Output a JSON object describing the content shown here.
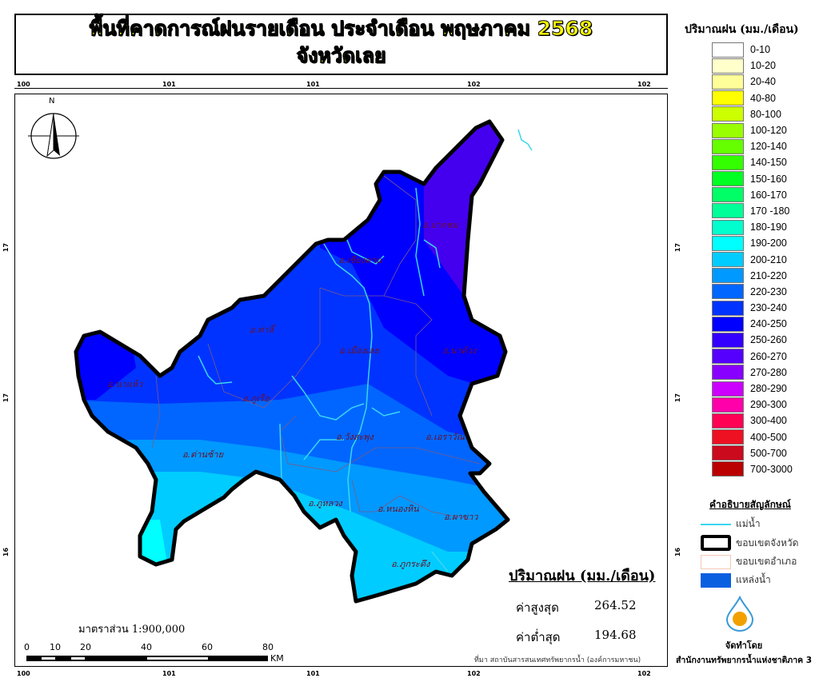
{
  "title": {
    "line1": "พื้นที่คาดการณ์ฝนรายเดือน ประจำเดือน พฤษภาคม 2568",
    "line2": "จังหวัดเลย"
  },
  "grid": {
    "top_labels": [
      "100",
      "101",
      "101",
      "102",
      "102"
    ],
    "bottom_labels": [
      "100",
      "101",
      "101",
      "102",
      "102"
    ],
    "left_labels": [
      "17",
      "17",
      "16"
    ],
    "right_labels": [
      "17",
      "17",
      "16"
    ]
  },
  "north_label": "N",
  "districts": [
    "อ.ปากชม",
    "อ.เชียงคาน",
    "อ.ท่าลี่",
    "อ.เมืองเลย",
    "อ.นาด้วง",
    "อ.นาแห้ว",
    "อ.ภูเรือ",
    "อ.วังสะพุง",
    "อ.เอราวัณ",
    "อ.ด่านซ้าย",
    "อ.ภูหลวง",
    "อ.หนองหิน",
    "อ.ผาขาว",
    "อ.ภูกระดึง"
  ],
  "scale": {
    "text": "มาตราส่วน 1:900,000",
    "ticks": [
      "0",
      "10",
      "20",
      "40",
      "60",
      "80"
    ],
    "unit": "KM"
  },
  "source": "ที่มา  สถาบันสารสนเทศทรัพยากรน้ำ (องค์การมหาชน)",
  "stats": {
    "title": "ปริมาณฝน (มม./เดือน)",
    "max_label": "ค่าสูงสุด",
    "max_value": "264.52",
    "min_label": "ค่าต่ำสุด",
    "min_value": "194.68"
  },
  "legend": {
    "title": "ปริมาณฝน (มม./เดือน)",
    "items": [
      {
        "label": "0-10",
        "color": "#ffffff"
      },
      {
        "label": "10-20",
        "color": "#ffffcc"
      },
      {
        "label": "20-40",
        "color": "#ffff99"
      },
      {
        "label": "40-80",
        "color": "#ffff00"
      },
      {
        "label": "80-100",
        "color": "#ccff00"
      },
      {
        "label": "100-120",
        "color": "#99ff00"
      },
      {
        "label": "120-140",
        "color": "#66ff00"
      },
      {
        "label": "140-150",
        "color": "#33ff00"
      },
      {
        "label": "150-160",
        "color": "#00ff22"
      },
      {
        "label": "160-170",
        "color": "#00ff66"
      },
      {
        "label": "170 -180",
        "color": "#00ff99"
      },
      {
        "label": "180-190",
        "color": "#00ffcc"
      },
      {
        "label": "190-200",
        "color": "#00ffff"
      },
      {
        "label": "200-210",
        "color": "#00ccff"
      },
      {
        "label": "210-220",
        "color": "#0099ff"
      },
      {
        "label": "220-230",
        "color": "#0066ff"
      },
      {
        "label": "230-240",
        "color": "#0033ff"
      },
      {
        "label": "240-250",
        "color": "#0000ff"
      },
      {
        "label": "250-260",
        "color": "#3300ff"
      },
      {
        "label": "260-270",
        "color": "#5500ff"
      },
      {
        "label": "270-280",
        "color": "#8800ff"
      },
      {
        "label": "280-290",
        "color": "#cc00ff"
      },
      {
        "label": "290-300",
        "color": "#ff00aa"
      },
      {
        "label": "300-400",
        "color": "#ff0055"
      },
      {
        "label": "400-500",
        "color": "#ee1122"
      },
      {
        "label": "500-700",
        "color": "#cc0a1e"
      },
      {
        "label": "700-3000",
        "color": "#bb0000"
      }
    ]
  },
  "symbols": {
    "title": "คำอธิบายสัญลักษณ์",
    "river": "แม่น้ำ",
    "province_border": "ขอบเขตจังหวัด",
    "district_border": "ขอบเขตอำเภอ",
    "water_body": "แหล่งน้ำ"
  },
  "credit": {
    "label": "จัดทำโดย",
    "org": "สำนักงานทรัพยากรน้ำแห่งชาติภาค 3"
  }
}
